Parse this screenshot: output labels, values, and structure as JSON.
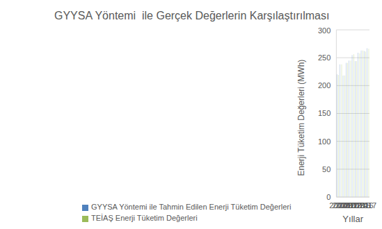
{
  "chart_data": {
    "type": "bar",
    "title": "GYYSA Yöntemi  ile Gerçek Değerlerin Karşılaştırılması",
    "x_label": "Yıllar",
    "y_label": "Enerji Tüketim Değerleri (MWh)",
    "categories": [
      "2007",
      "2008",
      "2009",
      "2010",
      "2011",
      "2012",
      "2013",
      "2014",
      "2015",
      "2016",
      "2017"
    ],
    "series": [
      {
        "name": "GYYSA Yöntemi ile Tahmin Edilen Enerji Tüketim Değerleri",
        "color": "#4f81bd",
        "values": [
          220,
          238,
          218,
          241,
          245,
          255,
          244,
          259,
          263,
          262,
          267
        ]
      },
      {
        "name": "TEİAŞ Enerji Tüketim Değerleri",
        "color": "#9bbb59",
        "values": [
          219,
          238,
          218,
          241,
          245,
          256,
          244,
          258,
          263,
          261,
          266
        ]
      }
    ],
    "ylim": [
      0,
      300
    ],
    "yticks": [
      0,
      50,
      100,
      150,
      200,
      250,
      300
    ],
    "grid": true,
    "legend": "bottom"
  }
}
